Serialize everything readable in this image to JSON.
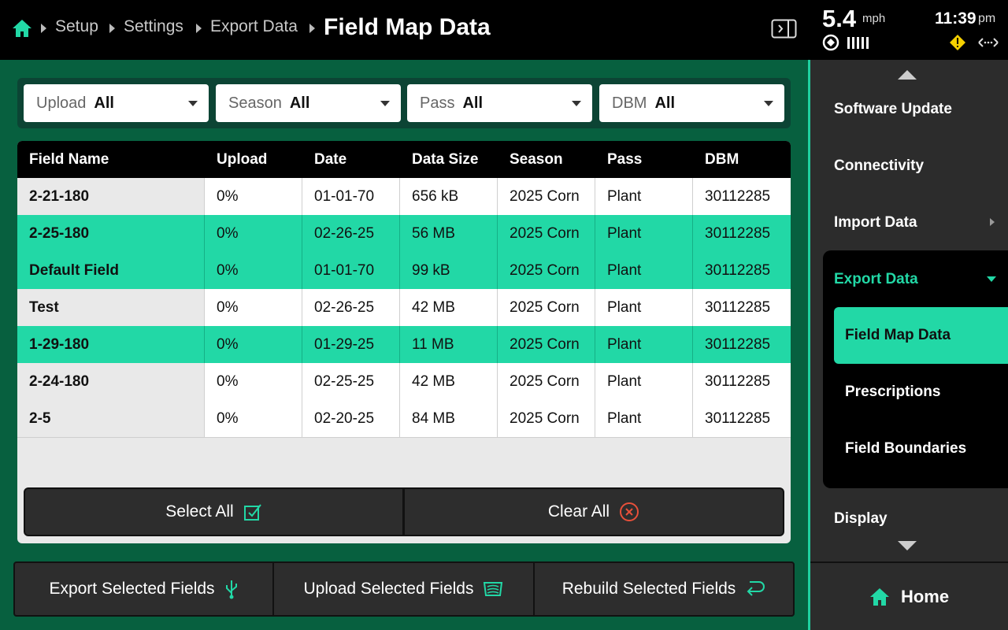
{
  "header": {
    "breadcrumbs": [
      "Setup",
      "Settings",
      "Export Data"
    ],
    "title": "Field Map Data",
    "speed": "5.4",
    "speed_unit": "mph",
    "time": "11:39",
    "time_suffix": "pm"
  },
  "filters": [
    {
      "label": "Upload",
      "value": "All"
    },
    {
      "label": "Season",
      "value": "All"
    },
    {
      "label": "Pass",
      "value": "All"
    },
    {
      "label": "DBM",
      "value": "All"
    }
  ],
  "table": {
    "columns": [
      "Field Name",
      "Upload",
      "Date",
      "Data Size",
      "Season",
      "Pass",
      "DBM"
    ],
    "rows": [
      {
        "cells": [
          "2-21-180",
          "0%",
          "01-01-70",
          "656 kB",
          "2025 Corn",
          "Plant",
          "30112285"
        ],
        "selected": false
      },
      {
        "cells": [
          "2-25-180",
          "0%",
          "02-26-25",
          "56 MB",
          "2025 Corn",
          "Plant",
          "30112285"
        ],
        "selected": true
      },
      {
        "cells": [
          "Default Field",
          "0%",
          "01-01-70",
          "99 kB",
          "2025 Corn",
          "Plant",
          "30112285"
        ],
        "selected": true
      },
      {
        "cells": [
          "Test",
          "0%",
          "02-26-25",
          "42 MB",
          "2025 Corn",
          "Plant",
          "30112285"
        ],
        "selected": false
      },
      {
        "cells": [
          "1-29-180",
          "0%",
          "01-29-25",
          "11 MB",
          "2025 Corn",
          "Plant",
          "30112285"
        ],
        "selected": true
      },
      {
        "cells": [
          "2-24-180",
          "0%",
          "02-25-25",
          "42 MB",
          "2025 Corn",
          "Plant",
          "30112285"
        ],
        "selected": false
      },
      {
        "cells": [
          "2-5",
          "0%",
          "02-20-25",
          "84 MB",
          "2025 Corn",
          "Plant",
          "30112285"
        ],
        "selected": false
      }
    ]
  },
  "table_actions": {
    "select_all": "Select All",
    "clear_all": "Clear All"
  },
  "footer_buttons": [
    "Export Selected Fields",
    "Upload Selected Fields",
    "Rebuild Selected Fields"
  ],
  "sidebar": {
    "items": [
      "Software Update",
      "Connectivity",
      "Import Data"
    ],
    "group": {
      "title": "Export Data",
      "items": [
        {
          "label": "Field Map Data",
          "selected": true
        },
        {
          "label": "Prescriptions",
          "selected": false
        },
        {
          "label": "Field Boundaries",
          "selected": false
        }
      ]
    },
    "after_items": [
      "Display"
    ],
    "home": "Home"
  }
}
